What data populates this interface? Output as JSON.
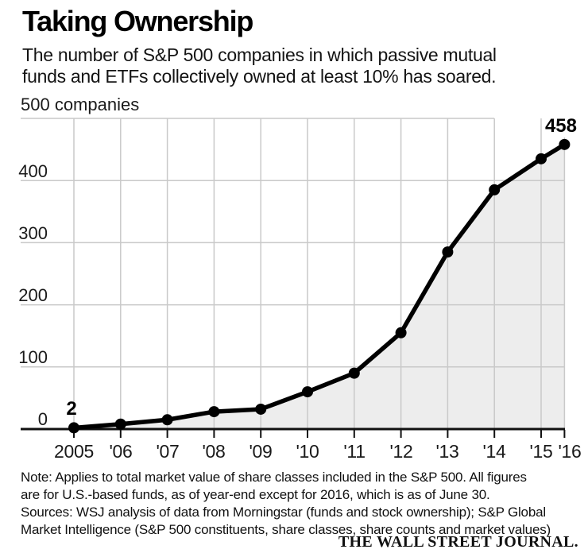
{
  "chart_data": {
    "type": "area",
    "title": "Taking Ownership",
    "subtitle_lines": [
      "The number of S&P 500 companies in which passive mutual",
      "funds and ETFs collectively owned at least 10% has soared."
    ],
    "unit_label": "500 companies",
    "x": [
      2005,
      2006,
      2007,
      2008,
      2009,
      2010,
      2011,
      2012,
      2013,
      2014,
      2015,
      2016.5
    ],
    "x_labels": [
      "2005",
      "'06",
      "'07",
      "'08",
      "'09",
      "'10",
      "'11",
      "'12",
      "'13",
      "'14",
      "'15",
      "'16"
    ],
    "x_pos_years": [
      0,
      1,
      2,
      3,
      4,
      5,
      6,
      7,
      8,
      9,
      10,
      10.5
    ],
    "values": [
      2,
      8,
      15,
      28,
      32,
      60,
      90,
      155,
      285,
      385,
      435,
      458
    ],
    "y_ticks": [
      0,
      100,
      200,
      300,
      400,
      500
    ],
    "y_tick_labels": [
      "0",
      "100",
      "200",
      "300",
      "400"
    ],
    "ylim": [
      0,
      500
    ],
    "grid": true,
    "legend": "none",
    "annotations": {
      "first_point_label": "2",
      "last_point_label": "458"
    },
    "line_color": "#000000",
    "area_color": "#ededed",
    "grid_color": "#c9c9c9",
    "axis_color": "#111111",
    "note_lines": [
      "Note: Applies to total market value of share classes included in the S&P 500. All figures",
      "are for U.S.-based funds, as of year-end except for 2016, which is as of June 30."
    ],
    "source_lines": [
      "Sources: WSJ analysis of data from Morningstar (funds and stock ownership); S&P Global",
      "Market Intelligence (S&P 500 constituents, share classes, share counts and market values)"
    ]
  },
  "footer": {
    "brand": "THE WALL STREET JOURNAL."
  }
}
